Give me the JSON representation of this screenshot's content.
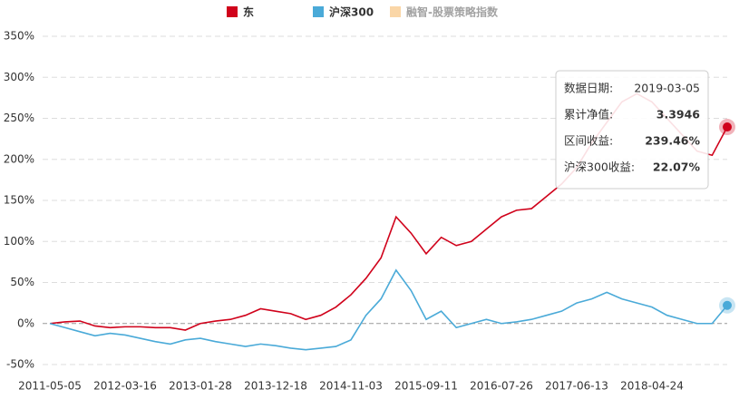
{
  "chart_data": {
    "type": "line",
    "categories": [
      "2011-05-05",
      null,
      null,
      null,
      null,
      "2012-03-16",
      null,
      null,
      null,
      null,
      "2013-01-28",
      null,
      null,
      null,
      null,
      "2013-12-18",
      null,
      null,
      null,
      null,
      "2014-11-03",
      null,
      null,
      null,
      null,
      "2015-09-11",
      null,
      null,
      null,
      null,
      "2016-07-26",
      null,
      null,
      null,
      null,
      "2017-06-13",
      null,
      null,
      null,
      null,
      "2018-04-24",
      null,
      null,
      null,
      null,
      null
    ],
    "series": [
      {
        "name": "东",
        "color": "#d0021b",
        "values": [
          0,
          2,
          3,
          -3,
          -5,
          -4,
          -4,
          -5,
          -5,
          -8,
          0,
          3,
          5,
          10,
          18,
          15,
          12,
          5,
          10,
          20,
          35,
          55,
          80,
          130,
          110,
          85,
          105,
          95,
          100,
          115,
          130,
          138,
          140,
          155,
          170,
          190,
          220,
          245,
          270,
          280,
          270,
          250,
          230,
          210,
          205,
          239.46
        ]
      },
      {
        "name": "沪深300",
        "color": "#4aaad8",
        "values": [
          0,
          -5,
          -10,
          -15,
          -12,
          -14,
          -18,
          -22,
          -25,
          -20,
          -18,
          -22,
          -25,
          -28,
          -25,
          -27,
          -30,
          -32,
          -30,
          -28,
          -20,
          10,
          30,
          65,
          40,
          5,
          15,
          -5,
          0,
          5,
          0,
          2,
          5,
          10,
          15,
          25,
          30,
          38,
          30,
          25,
          20,
          10,
          5,
          0,
          0,
          22.07
        ]
      }
    ],
    "inactive_series": [
      {
        "name": "融智-股票策略指数",
        "color": "#f3a33b"
      }
    ],
    "ylim": [
      -50,
      350
    ],
    "yticks": [
      {
        "value": -50,
        "label": "-50%"
      },
      {
        "value": 0,
        "label": "0%"
      },
      {
        "value": 50,
        "label": "50%"
      },
      {
        "value": 100,
        "label": "100%"
      },
      {
        "value": 150,
        "label": "150%"
      },
      {
        "value": 200,
        "label": "200%"
      },
      {
        "value": 250,
        "label": "250%"
      },
      {
        "value": 300,
        "label": "300%"
      },
      {
        "value": 350,
        "label": "350%"
      }
    ],
    "grid": true,
    "tooltip": [
      {
        "label": "数据日期:",
        "value": "2019-03-05"
      },
      {
        "label": "累计净值:",
        "value": "3.3946"
      },
      {
        "label": "区间收益:",
        "value": "239.46%"
      },
      {
        "label": "沪深300收益:",
        "value": "22.07%"
      }
    ]
  }
}
